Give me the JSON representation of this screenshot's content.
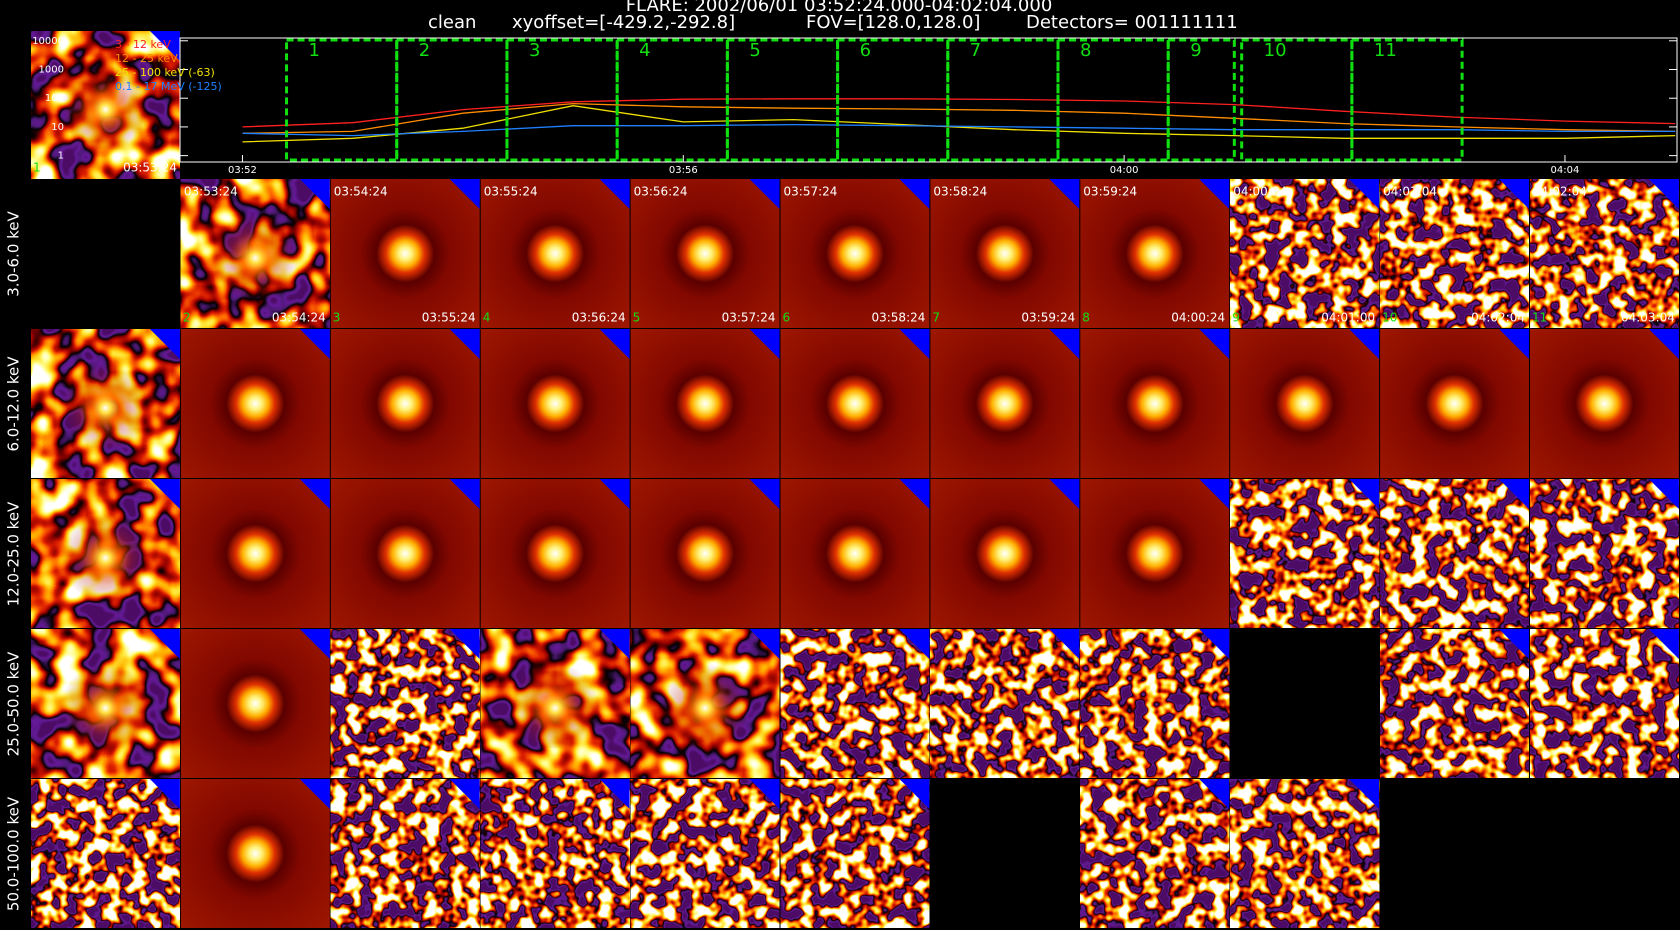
{
  "header": {
    "title": "FLARE: 2002/06/01 03:52:24.000-04:02:04.000",
    "method": "clean",
    "xyoffset": "xyoffset=[-429.2,-292.8]",
    "fov": "FOV=[128.0,128.0]",
    "detectors": "Detectors= 001111111"
  },
  "chart_data": {
    "type": "line",
    "log": true,
    "x": [
      "03:52",
      "03:53",
      "03:54",
      "03:55",
      "03:56",
      "03:57",
      "03:58",
      "03:59",
      "04:00",
      "04:01",
      "04:02",
      "04:03",
      "04:04",
      "04:05"
    ],
    "xlim": [
      "03:51:26",
      "04:05:01"
    ],
    "xticks": [
      "03:52",
      "03:56",
      "04:00",
      "04:04"
    ],
    "ylim": [
      0.6,
      12500
    ],
    "yticks": [
      1,
      10,
      100,
      1000,
      10000
    ],
    "series": [
      {
        "name": "3 - 12 keV",
        "color": "#ff2020",
        "values": [
          10,
          14,
          40,
          75,
          92,
          95,
          95,
          90,
          80,
          60,
          35,
          22,
          16,
          13
        ]
      },
      {
        "name": "12 - 25 keV",
        "color": "#ff8c00",
        "values": [
          6,
          7,
          30,
          65,
          50,
          45,
          42,
          38,
          30,
          20,
          13,
          10,
          8,
          7
        ]
      },
      {
        "name": "25 - 100 keV (-63)",
        "color": "#f0e000",
        "values": [
          3,
          4,
          9,
          55,
          15,
          18,
          12,
          8,
          6,
          5,
          4,
          4,
          4,
          5
        ]
      },
      {
        "name": "0.1 - 17 MeV (-125)",
        "color": "#2080ff",
        "values": [
          6,
          5,
          7,
          11,
          11,
          12,
          11,
          10,
          9,
          8,
          8,
          8,
          7,
          7
        ]
      }
    ],
    "intervals": [
      {
        "label": "1",
        "start": "03:52:24",
        "end": "03:53:24"
      },
      {
        "label": "2",
        "start": "03:53:24",
        "end": "03:54:24"
      },
      {
        "label": "3",
        "start": "03:54:24",
        "end": "03:55:24"
      },
      {
        "label": "4",
        "start": "03:55:24",
        "end": "03:56:24"
      },
      {
        "label": "5",
        "start": "03:56:24",
        "end": "03:57:24"
      },
      {
        "label": "6",
        "start": "03:57:24",
        "end": "03:58:24"
      },
      {
        "label": "7",
        "start": "03:58:24",
        "end": "03:59:24"
      },
      {
        "label": "8",
        "start": "03:59:24",
        "end": "04:00:24"
      },
      {
        "label": "9",
        "start": "04:00:24",
        "end": "04:01:00"
      },
      {
        "label": "10",
        "start": "04:01:04",
        "end": "04:02:04"
      },
      {
        "label": "11",
        "start": "04:02:04",
        "end": "04:03:04"
      }
    ]
  },
  "rows": [
    "3.0-6.0 keV",
    "6.0-12.0 keV",
    "12.0-25.0 keV",
    "25.0-50.0 keV",
    "50.0-100.0 keV"
  ]
}
